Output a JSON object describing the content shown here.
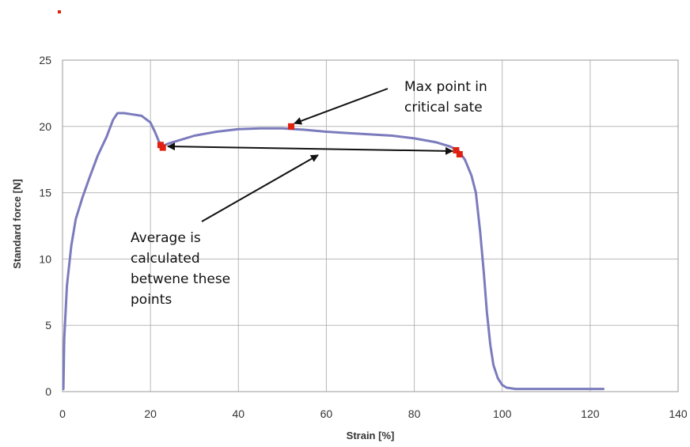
{
  "chart_data": {
    "type": "line",
    "title": "",
    "xlabel": "Strain [%]",
    "ylabel": "Standard force [N]",
    "xlim": [
      0,
      140
    ],
    "ylim": [
      0,
      25
    ],
    "x_ticks": [
      0,
      20,
      40,
      60,
      80,
      100,
      120,
      140
    ],
    "y_ticks": [
      0,
      5,
      10,
      15,
      20,
      25
    ],
    "grid": true,
    "legend": "none",
    "series": [
      {
        "color": "#7b7bbd",
        "points": [
          [
            0.2,
            0.2
          ],
          [
            0.4,
            4.0
          ],
          [
            1.0,
            8.0
          ],
          [
            2.0,
            11.0
          ],
          [
            3.0,
            13.0
          ],
          [
            4.5,
            14.6
          ],
          [
            6.0,
            16.0
          ],
          [
            8.0,
            17.8
          ],
          [
            10.0,
            19.2
          ],
          [
            11.5,
            20.5
          ],
          [
            12.5,
            21.0
          ],
          [
            14.0,
            21.0
          ],
          [
            16.0,
            20.9
          ],
          [
            18.0,
            20.8
          ],
          [
            20.0,
            20.3
          ],
          [
            21.0,
            19.6
          ],
          [
            22.0,
            18.8
          ],
          [
            22.7,
            18.5
          ],
          [
            24.0,
            18.7
          ],
          [
            27.0,
            19.0
          ],
          [
            30.0,
            19.3
          ],
          [
            35.0,
            19.6
          ],
          [
            40.0,
            19.8
          ],
          [
            45.0,
            19.85
          ],
          [
            50.0,
            19.85
          ],
          [
            55.0,
            19.75
          ],
          [
            60.0,
            19.6
          ],
          [
            65.0,
            19.5
          ],
          [
            70.0,
            19.4
          ],
          [
            75.0,
            19.3
          ],
          [
            80.0,
            19.1
          ],
          [
            85.0,
            18.8
          ],
          [
            88.0,
            18.5
          ],
          [
            90.0,
            18.2
          ],
          [
            91.5,
            17.5
          ],
          [
            93.0,
            16.3
          ],
          [
            94.0,
            15.0
          ],
          [
            95.0,
            12.0
          ],
          [
            95.8,
            9.0
          ],
          [
            96.5,
            6.0
          ],
          [
            97.3,
            3.5
          ],
          [
            98.0,
            2.0
          ],
          [
            99.0,
            1.0
          ],
          [
            100.0,
            0.5
          ],
          [
            101.0,
            0.3
          ],
          [
            103.0,
            0.2
          ],
          [
            110.0,
            0.2
          ],
          [
            123.0,
            0.2
          ]
        ]
      }
    ],
    "markers": [
      {
        "x": 52.0,
        "y": 20.0,
        "color": "#e02010"
      },
      {
        "x": 22.3,
        "y": 18.6,
        "color": "#e02010"
      },
      {
        "x": 22.8,
        "y": 18.4,
        "color": "#e02010"
      },
      {
        "x": 89.5,
        "y": 18.2,
        "color": "#e02010"
      },
      {
        "x": 90.3,
        "y": 17.9,
        "color": "#e02010"
      }
    ],
    "annotations": [
      {
        "lines": [
          "Max point in",
          "critical sate"
        ]
      },
      {
        "lines": [
          "Average is",
          "calculated",
          "betwene these",
          "points"
        ]
      }
    ]
  }
}
